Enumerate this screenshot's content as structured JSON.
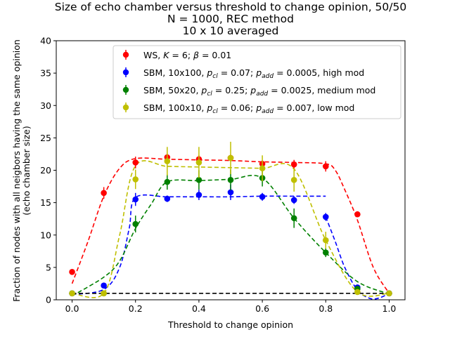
{
  "chart_data": {
    "type": "scatter",
    "title": [
      "Size of echo chamber versus threshold to change opinion, 50/50",
      "N = 1000, REC method",
      "10 x 10 averaged"
    ],
    "xlabel": "Threshold to change opinion",
    "ylabel": [
      "Fraction of nodes with all neigbors having the same opinion",
      "(echo chamber size)"
    ],
    "xlim": [
      -0.05,
      1.05
    ],
    "ylim": [
      0,
      40
    ],
    "xticks": [
      0.0,
      0.2,
      0.4,
      0.6,
      0.8,
      1.0
    ],
    "xtick_labels": [
      "0.0",
      "0.2",
      "0.4",
      "0.6",
      "0.8",
      "1.0"
    ],
    "yticks": [
      0,
      5,
      10,
      15,
      20,
      25,
      30,
      35,
      40
    ],
    "ytick_labels": [
      "0",
      "5",
      "10",
      "15",
      "20",
      "25",
      "30",
      "35",
      "40"
    ],
    "grid": false,
    "legend_position": "upper-center",
    "x": [
      0.0,
      0.1,
      0.2,
      0.3,
      0.4,
      0.5,
      0.6,
      0.7,
      0.8,
      0.9,
      1.0
    ],
    "series": [
      {
        "name": "WS, K = 6; β = 0.01",
        "legend_plain": "WS, ",
        "legend_k": "K",
        "legend_mid": " = 6; ",
        "legend_beta": "β",
        "legend_end": " = 0.01",
        "color": "#ff0000",
        "y": [
          4.3,
          16.5,
          21.2,
          22.0,
          21.7,
          21.9,
          21.0,
          20.9,
          20.6,
          13.2,
          1.0
        ],
        "err": [
          0.4,
          0.9,
          0.9,
          0.6,
          0.6,
          0.5,
          0.5,
          0.7,
          0.8,
          0.4,
          0.1
        ]
      },
      {
        "name": "SBM, 10x100, p_cl = 0.07; p_add = 0.0005, high mod",
        "legend_a": "SBM, 10x100, ",
        "legend_pcl": "0.07",
        "legend_padd": "0.0005",
        "legend_tail": ", high mod",
        "color": "#0000ff",
        "y": [
          1.0,
          2.2,
          15.5,
          15.6,
          16.2,
          16.6,
          15.9,
          15.4,
          12.8,
          1.9,
          1.0
        ],
        "err": [
          0.1,
          0.4,
          1.0,
          0.5,
          0.8,
          1.2,
          0.6,
          0.6,
          0.6,
          0.4,
          0.1
        ]
      },
      {
        "name": "SBM, 50x20, p_cl = 0.25; p_add = 0.0025, medium mod",
        "legend_a": "SBM, 50x20, ",
        "legend_pcl": "0.25",
        "legend_padd": "0.0025",
        "legend_tail": ", medium mod",
        "color": "#008000",
        "y": [
          1.0,
          1.0,
          11.7,
          18.2,
          18.5,
          18.5,
          18.8,
          12.6,
          7.3,
          1.7,
          1.0
        ],
        "err": [
          0.1,
          0.1,
          1.3,
          1.2,
          1.5,
          1.6,
          1.3,
          1.5,
          0.7,
          0.3,
          0.1
        ]
      },
      {
        "name": "SBM, 100x10, p_cl = 0.06; p_add = 0.007, low mod",
        "legend_a": "SBM, 100x10, ",
        "legend_pcl": "0.06",
        "legend_padd": "0.007",
        "legend_tail": ", low mod",
        "color": "#bfbf00",
        "y": [
          1.0,
          1.0,
          18.6,
          21.4,
          21.2,
          21.9,
          20.3,
          18.5,
          9.2,
          1.2,
          1.0
        ],
        "err": [
          0.1,
          0.1,
          1.5,
          2.2,
          2.4,
          2.5,
          2.0,
          1.8,
          1.3,
          0.3,
          0.1
        ]
      }
    ],
    "fit_curves": [
      {
        "color": "#ff0000",
        "x": [
          0.0,
          0.05,
          0.1,
          0.15,
          0.2,
          0.3,
          0.4,
          0.5,
          0.6,
          0.7,
          0.8,
          0.83,
          0.86,
          0.9,
          0.95,
          1.0
        ],
        "y": [
          2.5,
          9.0,
          16.0,
          20.3,
          21.8,
          21.7,
          21.6,
          21.5,
          21.3,
          21.2,
          21.0,
          20.0,
          17.0,
          12.3,
          5.0,
          1.0
        ]
      },
      {
        "color": "#0000ff",
        "x": [
          0.0,
          0.1,
          0.15,
          0.18,
          0.2,
          0.3,
          0.4,
          0.5,
          0.6,
          0.7,
          0.8
        ],
        "y": [
          0.8,
          1.6,
          5.0,
          11.0,
          15.8,
          15.9,
          15.9,
          15.9,
          16.0,
          16.0,
          16.0
        ]
      },
      {
        "color": "#0000ff",
        "x": [
          0.8,
          0.83,
          0.86,
          0.9,
          0.94,
          0.97,
          1.0
        ],
        "y": [
          12.8,
          9.0,
          5.0,
          1.5,
          0.2,
          0.3,
          1.0
        ]
      },
      {
        "color": "#008000",
        "x": [
          0.0,
          0.1,
          0.15,
          0.2,
          0.25,
          0.3,
          0.4,
          0.5,
          0.6,
          0.7,
          0.8,
          0.9,
          1.0
        ],
        "y": [
          0.6,
          3.5,
          6.0,
          11.0,
          14.8,
          18.2,
          18.4,
          18.6,
          18.8,
          12.6,
          7.3,
          2.8,
          0.9
        ]
      },
      {
        "color": "#bfbf00",
        "x": [
          0.0,
          0.1,
          0.15,
          0.2,
          0.3,
          0.4,
          0.5,
          0.6,
          0.7,
          0.8,
          0.9,
          1.0
        ],
        "y": [
          1.0,
          1.0,
          10.0,
          20.7,
          20.6,
          20.5,
          20.4,
          20.3,
          20.2,
          9.2,
          1.2,
          1.0
        ]
      },
      {
        "color": "#000000",
        "x": [
          0.0,
          1.0
        ],
        "y": [
          1.0,
          1.0
        ]
      }
    ]
  }
}
